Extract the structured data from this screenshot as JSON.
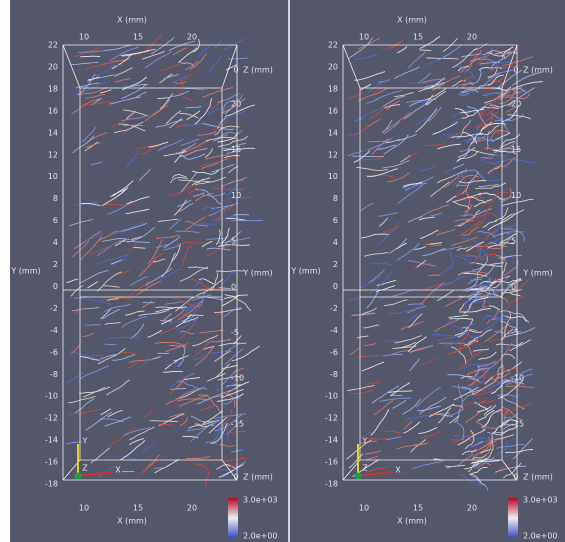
{
  "views": [
    {
      "x_title_top": "X (mm)",
      "x_ticks_top": [
        "10",
        "15",
        "20"
      ],
      "y_title_left": "Y (mm)",
      "y_ticks_left": [
        "22",
        "20",
        "18",
        "16",
        "14",
        "12",
        "10",
        "8",
        "6",
        "4",
        "2",
        "0",
        "-2",
        "-4",
        "-6",
        "-8",
        "-10",
        "-12",
        "-14",
        "-16",
        "-18"
      ],
      "y_title_right": "Y (mm)",
      "y_ticks_right": [
        "20",
        "15",
        "10",
        "5",
        "0",
        "-5",
        "-10",
        "-15"
      ],
      "z_title_top": "Z (mm)",
      "z_tick_top": "0",
      "z_title_bottom": "Z (mm)",
      "z_tick_bottom": "0",
      "x_title_bottom": "X (mm)",
      "x_ticks_bottom": [
        "10",
        "15",
        "20"
      ],
      "colorbar_max": "3.0e+03",
      "colorbar_min": "2.0e+00",
      "orientation_labels": {
        "y": "Y",
        "z": "Z",
        "x": "X"
      }
    },
    {
      "x_title_top": "X (mm)",
      "x_ticks_top": [
        "10",
        "15",
        "20"
      ],
      "y_title_left": "Y (mm)",
      "y_ticks_left": [
        "22",
        "20",
        "18",
        "16",
        "14",
        "12",
        "10",
        "8",
        "6",
        "4",
        "2",
        "0",
        "-2",
        "-4",
        "-6",
        "-8",
        "-10",
        "-12",
        "-14",
        "-16",
        "-18"
      ],
      "y_title_right": "Y (mm)",
      "y_ticks_right": [
        "20",
        "15",
        "10",
        "5",
        "0",
        "-5",
        "-10",
        "-15"
      ],
      "z_title_top": "Z (mm)",
      "z_tick_top": "0",
      "z_title_bottom": "Z (mm)",
      "z_tick_bottom": "0",
      "x_title_bottom": "X (mm)",
      "x_ticks_bottom": [
        "10",
        "15",
        "20"
      ],
      "colorbar_max": "3.0e+03",
      "colorbar_min": "2.0e+00",
      "orientation_labels": {
        "y": "Y",
        "z": "Z",
        "x": "X"
      }
    }
  ]
}
